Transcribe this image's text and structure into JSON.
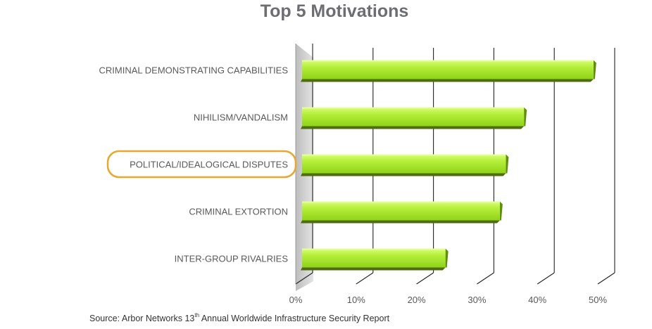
{
  "chart_data": {
    "type": "bar",
    "orientation": "horizontal",
    "title": "Top 5 Motivations",
    "categories": [
      "CRIMINAL DEMONSTRATING CAPABILITIES",
      "NIHILISM/VANDALISM",
      "POLITICAL/IDEALOGICAL DISPUTES",
      "CRIMINAL EXTORTION",
      "INTER-GROUP RIVALRIES"
    ],
    "values": [
      48,
      36.5,
      33.5,
      32.5,
      23.5
    ],
    "xlim": [
      0,
      50
    ],
    "xticks": [
      0,
      10,
      20,
      30,
      40,
      50
    ],
    "tick_labels": [
      "0%",
      "10%",
      "20%",
      "30%",
      "40%",
      "50%"
    ],
    "unit": "%",
    "grid": true,
    "highlighted_category": "POLITICAL/IDEALOGICAL DISPUTES",
    "colors": {
      "bar_light": "#b6ef3c",
      "bar_mid": "#8fd317",
      "bar_dark": "#5f8f0a",
      "bar_shadow": "#4d6d10",
      "highlight_outline": "#e8a72e",
      "grid": "#222222",
      "wall": "#c9c9c9"
    }
  },
  "source": {
    "prefix": "Source: Arbor Networks 13",
    "superscript": "th",
    "suffix": " Annual Worldwide Infrastructure Security Report"
  }
}
